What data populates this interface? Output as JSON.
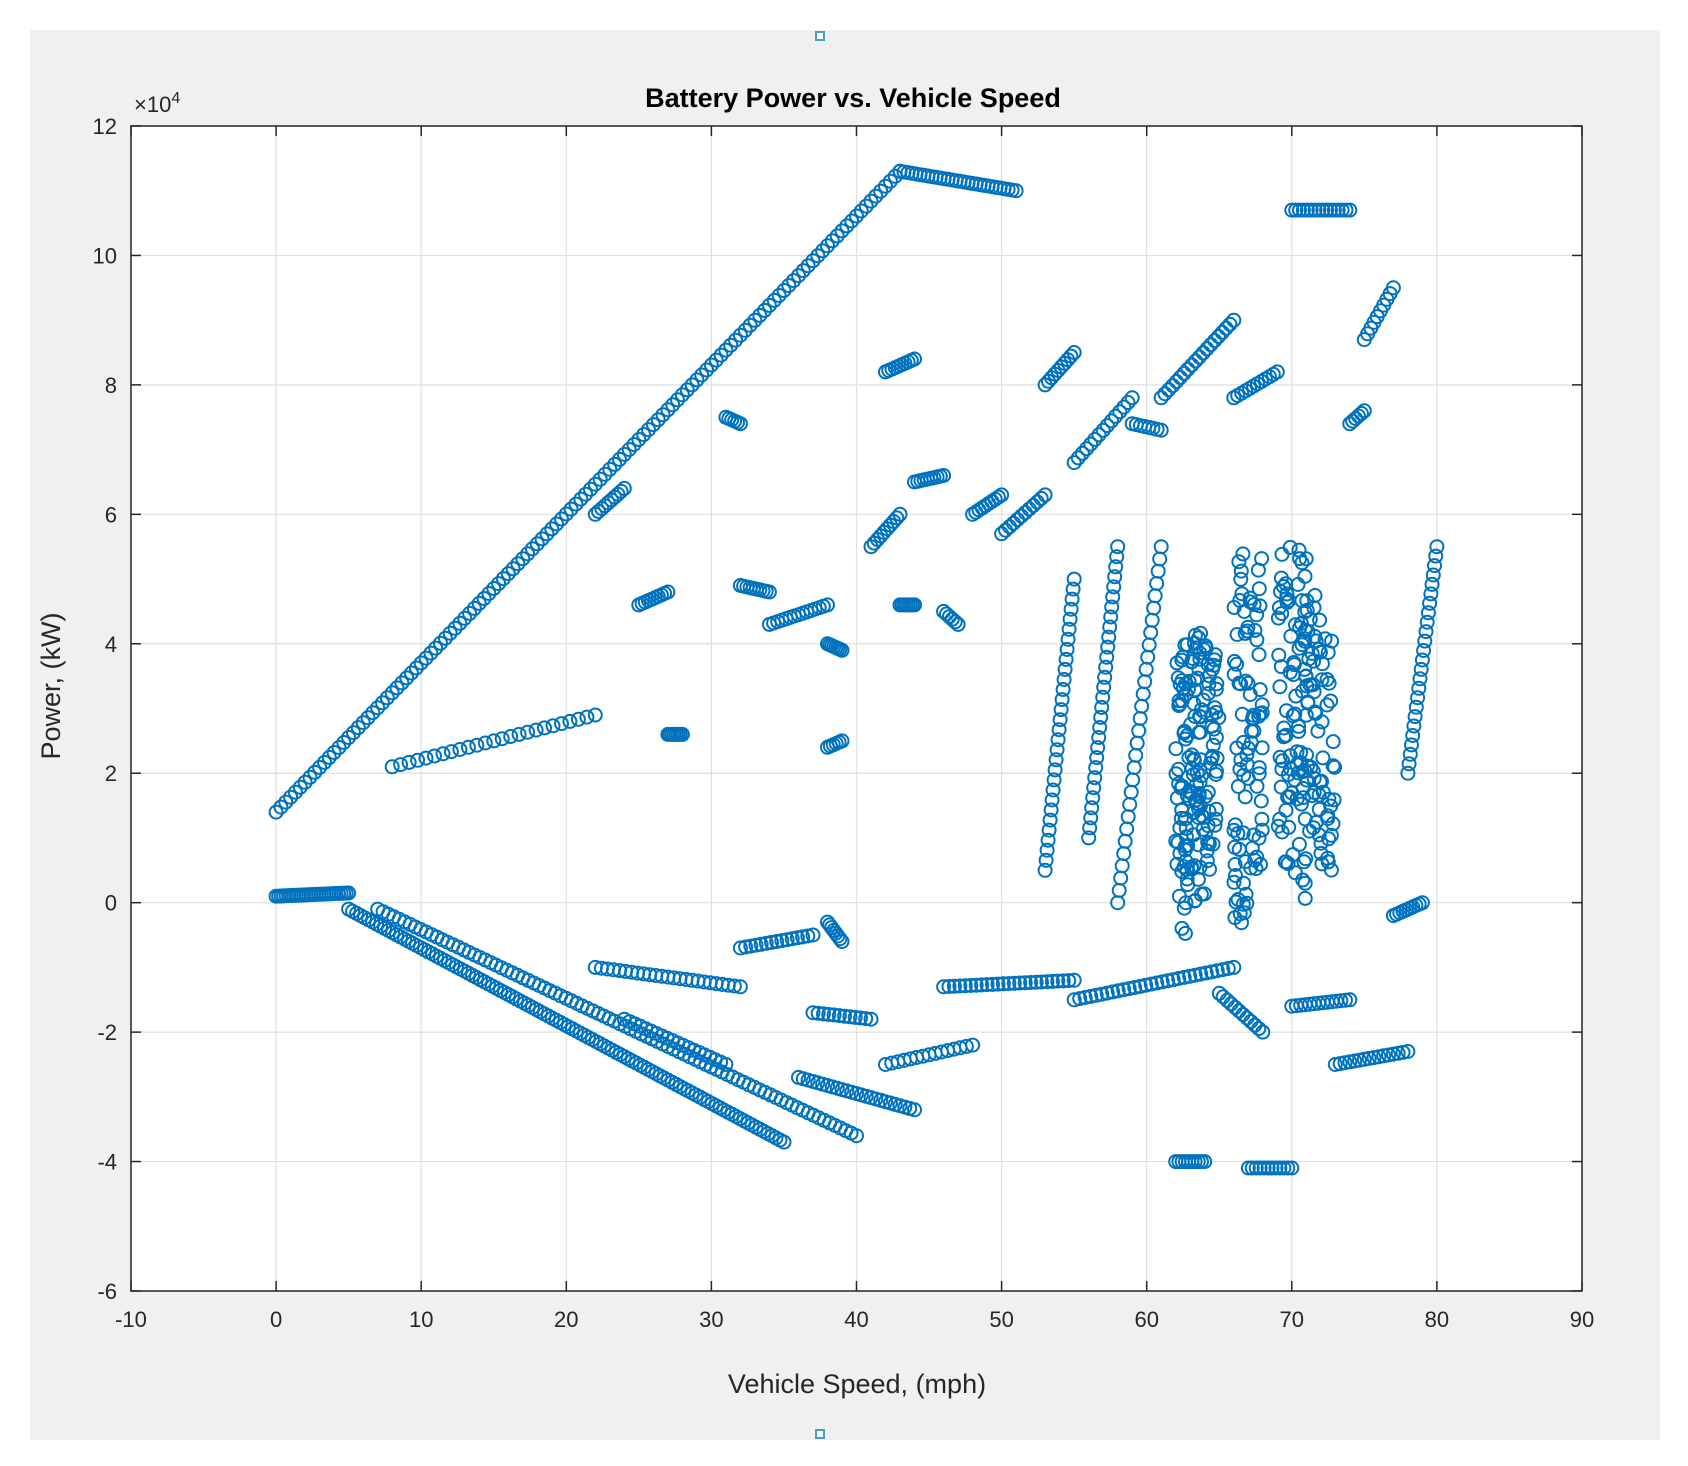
{
  "chart_data": {
    "type": "scatter",
    "title": "Battery Power vs. Vehicle Speed",
    "xlabel": "Vehicle Speed, (mph)",
    "ylabel": "Power, (kW)",
    "y_exponent_label": "×10",
    "y_exponent_power": "4",
    "xlim": [
      -10,
      90
    ],
    "ylim": [
      -60000,
      120000
    ],
    "x_ticks": [
      -10,
      0,
      10,
      20,
      30,
      40,
      50,
      60,
      70,
      80,
      90
    ],
    "y_ticks": [
      -6,
      -4,
      -2,
      0,
      2,
      4,
      6,
      8,
      10,
      12
    ],
    "y_tick_multiplier": 10000,
    "grid": true,
    "marker": "open-circle",
    "color": "#0072BD",
    "segments": [
      {
        "x": [
          0,
          43
        ],
        "y": [
          14000,
          113000
        ],
        "n": 130
      },
      {
        "x": [
          43,
          51
        ],
        "y": [
          113000,
          110000
        ],
        "n": 30
      },
      {
        "x": [
          0,
          5
        ],
        "y": [
          1000,
          1500
        ],
        "n": 30
      },
      {
        "x": [
          5,
          35
        ],
        "y": [
          -1000,
          -37000
        ],
        "n": 110
      },
      {
        "x": [
          7,
          40
        ],
        "y": [
          -1000,
          -36000
        ],
        "n": 90
      },
      {
        "x": [
          8,
          22
        ],
        "y": [
          21000,
          29000
        ],
        "n": 25
      },
      {
        "x": [
          22,
          24
        ],
        "y": [
          60000,
          64000
        ],
        "n": 10
      },
      {
        "x": [
          25,
          27
        ],
        "y": [
          46000,
          48000
        ],
        "n": 10
      },
      {
        "x": [
          31,
          32
        ],
        "y": [
          75000,
          74000
        ],
        "n": 6
      },
      {
        "x": [
          32,
          34
        ],
        "y": [
          49000,
          48000
        ],
        "n": 10
      },
      {
        "x": [
          34,
          38
        ],
        "y": [
          43000,
          46000
        ],
        "n": 15
      },
      {
        "x": [
          38,
          39
        ],
        "y": [
          40000,
          39000
        ],
        "n": 8
      },
      {
        "x": [
          41,
          43
        ],
        "y": [
          55000,
          60000
        ],
        "n": 10
      },
      {
        "x": [
          42,
          44
        ],
        "y": [
          82000,
          84000
        ],
        "n": 10
      },
      {
        "x": [
          43,
          44
        ],
        "y": [
          46000,
          46000
        ],
        "n": 8
      },
      {
        "x": [
          44,
          46
        ],
        "y": [
          65000,
          66000
        ],
        "n": 10
      },
      {
        "x": [
          46,
          47
        ],
        "y": [
          45000,
          43000
        ],
        "n": 6
      },
      {
        "x": [
          48,
          50
        ],
        "y": [
          60000,
          63000
        ],
        "n": 10
      },
      {
        "x": [
          50,
          53
        ],
        "y": [
          57000,
          63000
        ],
        "n": 12
      },
      {
        "x": [
          53,
          55
        ],
        "y": [
          80000,
          85000
        ],
        "n": 10
      },
      {
        "x": [
          55,
          59
        ],
        "y": [
          68000,
          78000
        ],
        "n": 15
      },
      {
        "x": [
          59,
          61
        ],
        "y": [
          74000,
          73000
        ],
        "n": 8
      },
      {
        "x": [
          61,
          66
        ],
        "y": [
          78000,
          90000
        ],
        "n": 20
      },
      {
        "x": [
          66,
          69
        ],
        "y": [
          78000,
          82000
        ],
        "n": 12
      },
      {
        "x": [
          70,
          74
        ],
        "y": [
          107000,
          107000
        ],
        "n": 16
      },
      {
        "x": [
          74,
          75
        ],
        "y": [
          74000,
          76000
        ],
        "n": 6
      },
      {
        "x": [
          75,
          77
        ],
        "y": [
          87000,
          95000
        ],
        "n": 10
      },
      {
        "x": [
          62,
          64
        ],
        "y": [
          -40000,
          -40000
        ],
        "n": 10
      },
      {
        "x": [
          67,
          70
        ],
        "y": [
          -41000,
          -41000
        ],
        "n": 12
      },
      {
        "x": [
          36,
          44
        ],
        "y": [
          -27000,
          -32000
        ],
        "n": 25
      },
      {
        "x": [
          22,
          32
        ],
        "y": [
          -10000,
          -13000
        ],
        "n": 25
      },
      {
        "x": [
          24,
          31
        ],
        "y": [
          -18000,
          -25000
        ],
        "n": 20
      },
      {
        "x": [
          32,
          37
        ],
        "y": [
          -7000,
          -5000
        ],
        "n": 15
      },
      {
        "x": [
          37,
          41
        ],
        "y": [
          -17000,
          -18000
        ],
        "n": 12
      },
      {
        "x": [
          42,
          48
        ],
        "y": [
          -25000,
          -22000
        ],
        "n": 15
      },
      {
        "x": [
          46,
          55
        ],
        "y": [
          -13000,
          -12000
        ],
        "n": 25
      },
      {
        "x": [
          55,
          66
        ],
        "y": [
          -15000,
          -10000
        ],
        "n": 30
      },
      {
        "x": [
          65,
          68
        ],
        "y": [
          -14000,
          -20000
        ],
        "n": 12
      },
      {
        "x": [
          70,
          74
        ],
        "y": [
          -16000,
          -15000
        ],
        "n": 14
      },
      {
        "x": [
          73,
          78
        ],
        "y": [
          -25000,
          -23000
        ],
        "n": 16
      },
      {
        "x": [
          77,
          79
        ],
        "y": [
          -2000,
          0
        ],
        "n": 10
      },
      {
        "x": [
          62,
          63
        ],
        "y": [
          -5000,
          40000
        ],
        "n": 60
      },
      {
        "x": [
          63,
          64
        ],
        "y": [
          0,
          42000
        ],
        "n": 60
      },
      {
        "x": [
          64,
          65
        ],
        "y": [
          5000,
          40000
        ],
        "n": 40
      },
      {
        "x": [
          66,
          67
        ],
        "y": [
          -5000,
          55000
        ],
        "n": 50
      },
      {
        "x": [
          67,
          68
        ],
        "y": [
          5000,
          55000
        ],
        "n": 40
      },
      {
        "x": [
          69,
          70
        ],
        "y": [
          5000,
          55000
        ],
        "n": 40
      },
      {
        "x": [
          70,
          71
        ],
        "y": [
          0,
          55000
        ],
        "n": 50
      },
      {
        "x": [
          71,
          72
        ],
        "y": [
          10000,
          50000
        ],
        "n": 40
      },
      {
        "x": [
          72,
          73
        ],
        "y": [
          5000,
          45000
        ],
        "n": 30
      },
      {
        "x": [
          56,
          58
        ],
        "y": [
          10000,
          55000
        ],
        "n": 30
      },
      {
        "x": [
          58,
          61
        ],
        "y": [
          0,
          55000
        ],
        "n": 30
      },
      {
        "x": [
          53,
          55
        ],
        "y": [
          5000,
          50000
        ],
        "n": 30
      },
      {
        "x": [
          78,
          80
        ],
        "y": [
          20000,
          55000
        ],
        "n": 25
      },
      {
        "x": [
          27,
          28
        ],
        "y": [
          26000,
          26000
        ],
        "n": 8
      },
      {
        "x": [
          38,
          39
        ],
        "y": [
          24000,
          25000
        ],
        "n": 6
      },
      {
        "x": [
          38,
          39
        ],
        "y": [
          -3000,
          -6000
        ],
        "n": 8
      }
    ]
  }
}
